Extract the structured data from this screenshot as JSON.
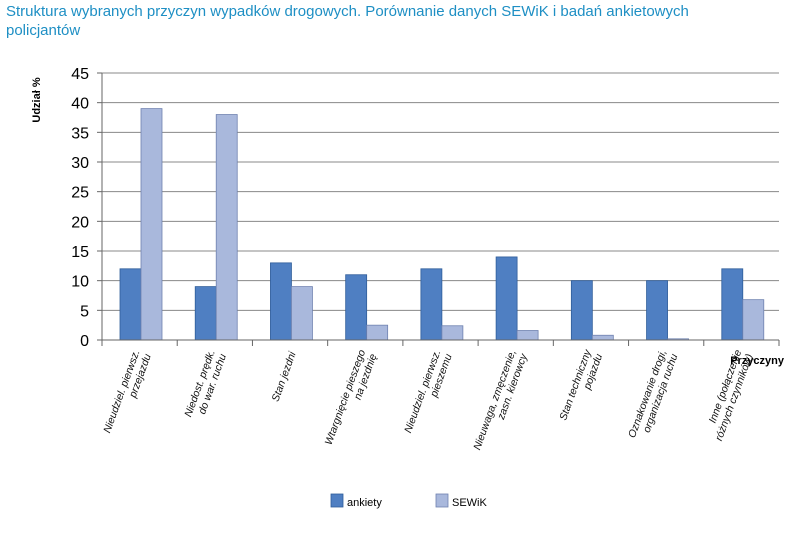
{
  "title": "Struktura wybranych przyczyn wypadków drogowych. Porównanie danych SEWiK i badań ankietowych policjantów",
  "colors": {
    "title": "#1e8fc4",
    "ankiety": "#4f7fc2",
    "ankiety_stroke": "#2f5d9a",
    "sewik": "#a9b8dc",
    "sewik_stroke": "#6f82b0",
    "gridline": "#888888",
    "axis": "#666666"
  },
  "chart_data": {
    "type": "bar",
    "title": "Struktura wybranych przyczyn wypadków drogowych. Porównanie danych SEWiK i badań ankietowych policjantów",
    "xlabel": "Przyczyny",
    "ylabel": "Udział %",
    "ylim": [
      0,
      45
    ],
    "yticks": [
      "0",
      "5",
      "10",
      "15",
      "20",
      "25",
      "30",
      "35",
      "40",
      "45"
    ],
    "grid": true,
    "legend_position": "bottom",
    "categories": [
      [
        "Nieudziel. pierwsz.",
        "przejazdu"
      ],
      [
        "Niedost. prędk.",
        "do war. ruchu"
      ],
      [
        "Stan jezdni"
      ],
      [
        "Wtargnięcie pieszego",
        "na jezdnię"
      ],
      [
        "Nieudziel. pierwsz.",
        "pieszemu"
      ],
      [
        "Nieuwaga, zmęczenie,",
        "zasn. kierowcy"
      ],
      [
        "Stan techniczny",
        "pojazdu"
      ],
      [
        "Oznakowanie drogi,",
        "organizacja ruchu"
      ],
      [
        "Inne (połączenie",
        "różnych czynników)"
      ]
    ],
    "series": [
      {
        "name": "ankiety",
        "values": [
          12,
          9,
          13,
          11,
          12,
          14,
          10,
          10,
          12
        ]
      },
      {
        "name": "SEWiK",
        "values": [
          39,
          38,
          9,
          2.5,
          2.4,
          1.6,
          0.8,
          0.2,
          6.8
        ]
      }
    ]
  }
}
